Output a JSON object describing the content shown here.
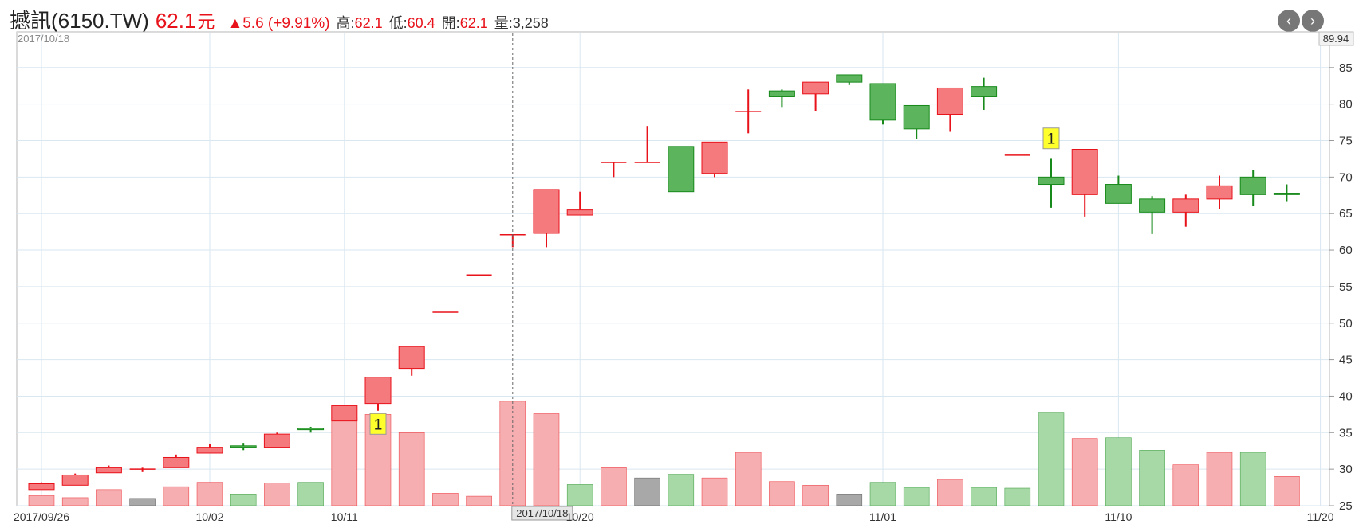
{
  "header": {
    "stock_name": "撼訊(6150.TW)",
    "price": "62.1",
    "price_unit": "元",
    "change": "▲5.6 (+9.91%)",
    "high_label": "高:",
    "high_value": "62.1",
    "low_label": "低:",
    "low_value": "60.4",
    "open_label": "開:",
    "open_value": "62.1",
    "volume_label": "量:",
    "volume_value": "3,258",
    "prev_icon": "chevron-left-icon",
    "next_icon": "chevron-right-icon"
  },
  "chart_data": {
    "type": "candlestick",
    "date_readout": "2017/10/18",
    "crosshair_label": "2017/10/18",
    "crosshair_index": 14,
    "y_top_label": "89.94",
    "ylim": [
      25,
      89.94
    ],
    "y_ticks": [
      "25",
      "30",
      "35",
      "40",
      "45",
      "50",
      "55",
      "60",
      "65",
      "70",
      "75",
      "80",
      "85"
    ],
    "x_tick_labels": [
      {
        "index": 0,
        "label": "2017/09/26"
      },
      {
        "index": 5,
        "label": "10/02"
      },
      {
        "index": 9,
        "label": "10/11"
      },
      {
        "index": 16,
        "label": "10/20"
      },
      {
        "index": 25,
        "label": "11/01"
      },
      {
        "index": 32,
        "label": "11/10"
      },
      {
        "index": 38,
        "label": "11/20"
      }
    ],
    "candles": [
      {
        "o": 27.2,
        "h": 28.2,
        "l": 27.2,
        "c": 28.0,
        "v": 26.4,
        "vc": "up"
      },
      {
        "o": 27.8,
        "h": 29.4,
        "l": 27.8,
        "c": 29.2,
        "v": 26.1,
        "vc": "up"
      },
      {
        "o": 29.5,
        "h": 30.5,
        "l": 29.5,
        "c": 30.2,
        "v": 27.2,
        "vc": "up"
      },
      {
        "o": 30.0,
        "h": 30.2,
        "l": 29.6,
        "c": 30.0,
        "v": 26.0,
        "vc": "flat"
      },
      {
        "o": 30.2,
        "h": 32.0,
        "l": 30.2,
        "c": 31.6,
        "v": 27.6,
        "vc": "up"
      },
      {
        "o": 32.2,
        "h": 33.5,
        "l": 32.2,
        "c": 33.0,
        "v": 28.2,
        "vc": "up"
      },
      {
        "o": 33.2,
        "h": 33.6,
        "l": 32.6,
        "c": 33.0,
        "v": 26.6,
        "vc": "down"
      },
      {
        "o": 33.0,
        "h": 35.0,
        "l": 33.0,
        "c": 34.8,
        "v": 28.1,
        "vc": "up"
      },
      {
        "o": 35.6,
        "h": 35.8,
        "l": 35.0,
        "c": 35.4,
        "v": 28.2,
        "vc": "down"
      },
      {
        "o": 36.6,
        "h": 38.7,
        "l": 36.6,
        "c": 38.7,
        "v": 37.0,
        "vc": "up"
      },
      {
        "o": 39.0,
        "h": 42.6,
        "l": 38.0,
        "c": 42.6,
        "v": 37.5,
        "vc": "up"
      },
      {
        "o": 43.8,
        "h": 46.8,
        "l": 42.8,
        "c": 46.8,
        "v": 35.0,
        "vc": "up"
      },
      {
        "o": 51.5,
        "h": 51.5,
        "l": 51.5,
        "c": 51.5,
        "v": 26.7,
        "vc": "up"
      },
      {
        "o": 56.6,
        "h": 56.6,
        "l": 56.6,
        "c": 56.6,
        "v": 26.3,
        "vc": "up"
      },
      {
        "o": 62.1,
        "h": 62.1,
        "l": 60.4,
        "c": 62.1,
        "v": 39.3,
        "vc": "up"
      },
      {
        "o": 62.3,
        "h": 68.3,
        "l": 60.4,
        "c": 68.3,
        "v": 37.6,
        "vc": "up"
      },
      {
        "o": 64.8,
        "h": 68.0,
        "l": 64.8,
        "c": 65.5,
        "v": 27.9,
        "vc": "down"
      },
      {
        "o": 72.0,
        "h": 72.0,
        "l": 70.0,
        "c": 72.0,
        "v": 30.2,
        "vc": "up"
      },
      {
        "o": 72.0,
        "h": 77.0,
        "l": 72.0,
        "c": 72.0,
        "v": 28.8,
        "vc": "flat"
      },
      {
        "o": 74.2,
        "h": 74.2,
        "l": 68.0,
        "c": 68.0,
        "v": 29.3,
        "vc": "down"
      },
      {
        "o": 70.5,
        "h": 74.8,
        "l": 70.0,
        "c": 74.8,
        "v": 28.8,
        "vc": "up"
      },
      {
        "o": 79.0,
        "h": 82.0,
        "l": 76.0,
        "c": 79.0,
        "v": 32.3,
        "vc": "up"
      },
      {
        "o": 81.8,
        "h": 82.0,
        "l": 79.6,
        "c": 81.0,
        "v": 28.3,
        "vc": "up"
      },
      {
        "o": 81.4,
        "h": 83.0,
        "l": 79.0,
        "c": 83.0,
        "v": 27.8,
        "vc": "up"
      },
      {
        "o": 84.0,
        "h": 84.0,
        "l": 82.6,
        "c": 83.0,
        "v": 26.6,
        "vc": "flat"
      },
      {
        "o": 82.8,
        "h": 82.8,
        "l": 77.2,
        "c": 77.8,
        "v": 28.2,
        "vc": "down"
      },
      {
        "o": 79.8,
        "h": 79.8,
        "l": 75.2,
        "c": 76.6,
        "v": 27.5,
        "vc": "down"
      },
      {
        "o": 78.6,
        "h": 82.2,
        "l": 76.2,
        "c": 82.2,
        "v": 28.6,
        "vc": "up"
      },
      {
        "o": 82.4,
        "h": 83.6,
        "l": 79.2,
        "c": 81.0,
        "v": 27.5,
        "vc": "down"
      },
      {
        "o": 73.0,
        "h": 73.0,
        "l": 73.0,
        "c": 73.0,
        "v": 27.4,
        "vc": "down"
      },
      {
        "o": 70.0,
        "h": 72.5,
        "l": 65.8,
        "c": 69.0,
        "v": 37.8,
        "vc": "down"
      },
      {
        "o": 67.6,
        "h": 73.8,
        "l": 64.6,
        "c": 73.8,
        "v": 34.2,
        "vc": "up"
      },
      {
        "o": 69.0,
        "h": 70.2,
        "l": 66.4,
        "c": 66.4,
        "v": 34.3,
        "vc": "down"
      },
      {
        "o": 67.0,
        "h": 67.4,
        "l": 62.2,
        "c": 65.2,
        "v": 32.6,
        "vc": "down"
      },
      {
        "o": 65.2,
        "h": 67.6,
        "l": 63.2,
        "c": 67.0,
        "v": 30.6,
        "vc": "up"
      },
      {
        "o": 67.0,
        "h": 70.2,
        "l": 65.6,
        "c": 68.8,
        "v": 32.3,
        "vc": "up"
      },
      {
        "o": 70.0,
        "h": 71.0,
        "l": 66.0,
        "c": 67.6,
        "v": 32.3,
        "vc": "down"
      },
      {
        "o": 67.8,
        "h": 69.0,
        "l": 66.6,
        "c": 67.6,
        "v": 29.0,
        "vc": "up"
      }
    ],
    "markers": [
      {
        "index": 10,
        "label": "1",
        "value": 36.2
      },
      {
        "index": 30,
        "label": "1",
        "value": 75.3
      }
    ],
    "colors": {
      "up_body": "#f47a7e",
      "up_stroke": "#e8121a",
      "down_body": "#5cb45d",
      "down_stroke": "#188a1b",
      "up_volume": "#f6aeb0",
      "down_volume": "#a7d9a7",
      "flat_volume": "#a8a8a8",
      "grid": "#d9e7f0",
      "marker_bg": "#ffff2c"
    }
  }
}
